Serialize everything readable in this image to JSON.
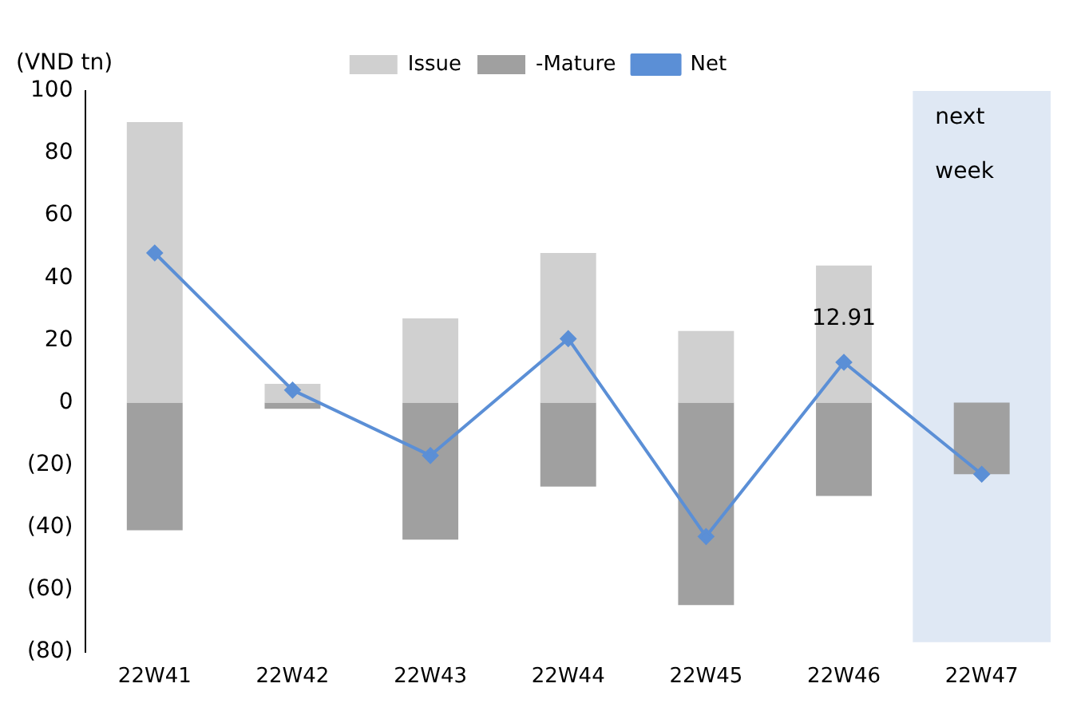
{
  "chart_data": {
    "type": "bar",
    "ylabel": "(VND tn)",
    "categories": [
      "22W41",
      "22W42",
      "22W43",
      "22W44",
      "22W45",
      "22W46",
      "22W47"
    ],
    "series": [
      {
        "name": "Issue",
        "color": "#d0d0d0",
        "values": [
          90,
          6,
          27,
          48,
          23,
          44,
          null
        ]
      },
      {
        "name": "-Mature",
        "color": "#a0a0a0",
        "values": [
          -41,
          -2,
          -44,
          -27,
          -65,
          -30,
          -23
        ]
      },
      {
        "name": "Net",
        "type": "line",
        "color": "#5b8fd6",
        "values": [
          48,
          4,
          -17,
          20.5,
          -43,
          12.91,
          -23
        ],
        "value_labels": [
          null,
          null,
          null,
          null,
          null,
          "12.91",
          null
        ]
      }
    ],
    "stacked": true,
    "ylim": [
      -80,
      100
    ],
    "yticks": [
      {
        "value": -80,
        "label": "(80)"
      },
      {
        "value": -60,
        "label": "(60)"
      },
      {
        "value": -40,
        "label": "(40)"
      },
      {
        "value": -20,
        "label": "(20)"
      },
      0,
      20,
      40,
      60,
      80,
      100
    ],
    "bands": [
      {
        "axis": "x",
        "from": "22W47",
        "to": "22W47",
        "label": "next week",
        "color": "#dfe8f4"
      }
    ],
    "legend": "top",
    "grid": false,
    "marker": "diamond",
    "line_style": "solid"
  }
}
